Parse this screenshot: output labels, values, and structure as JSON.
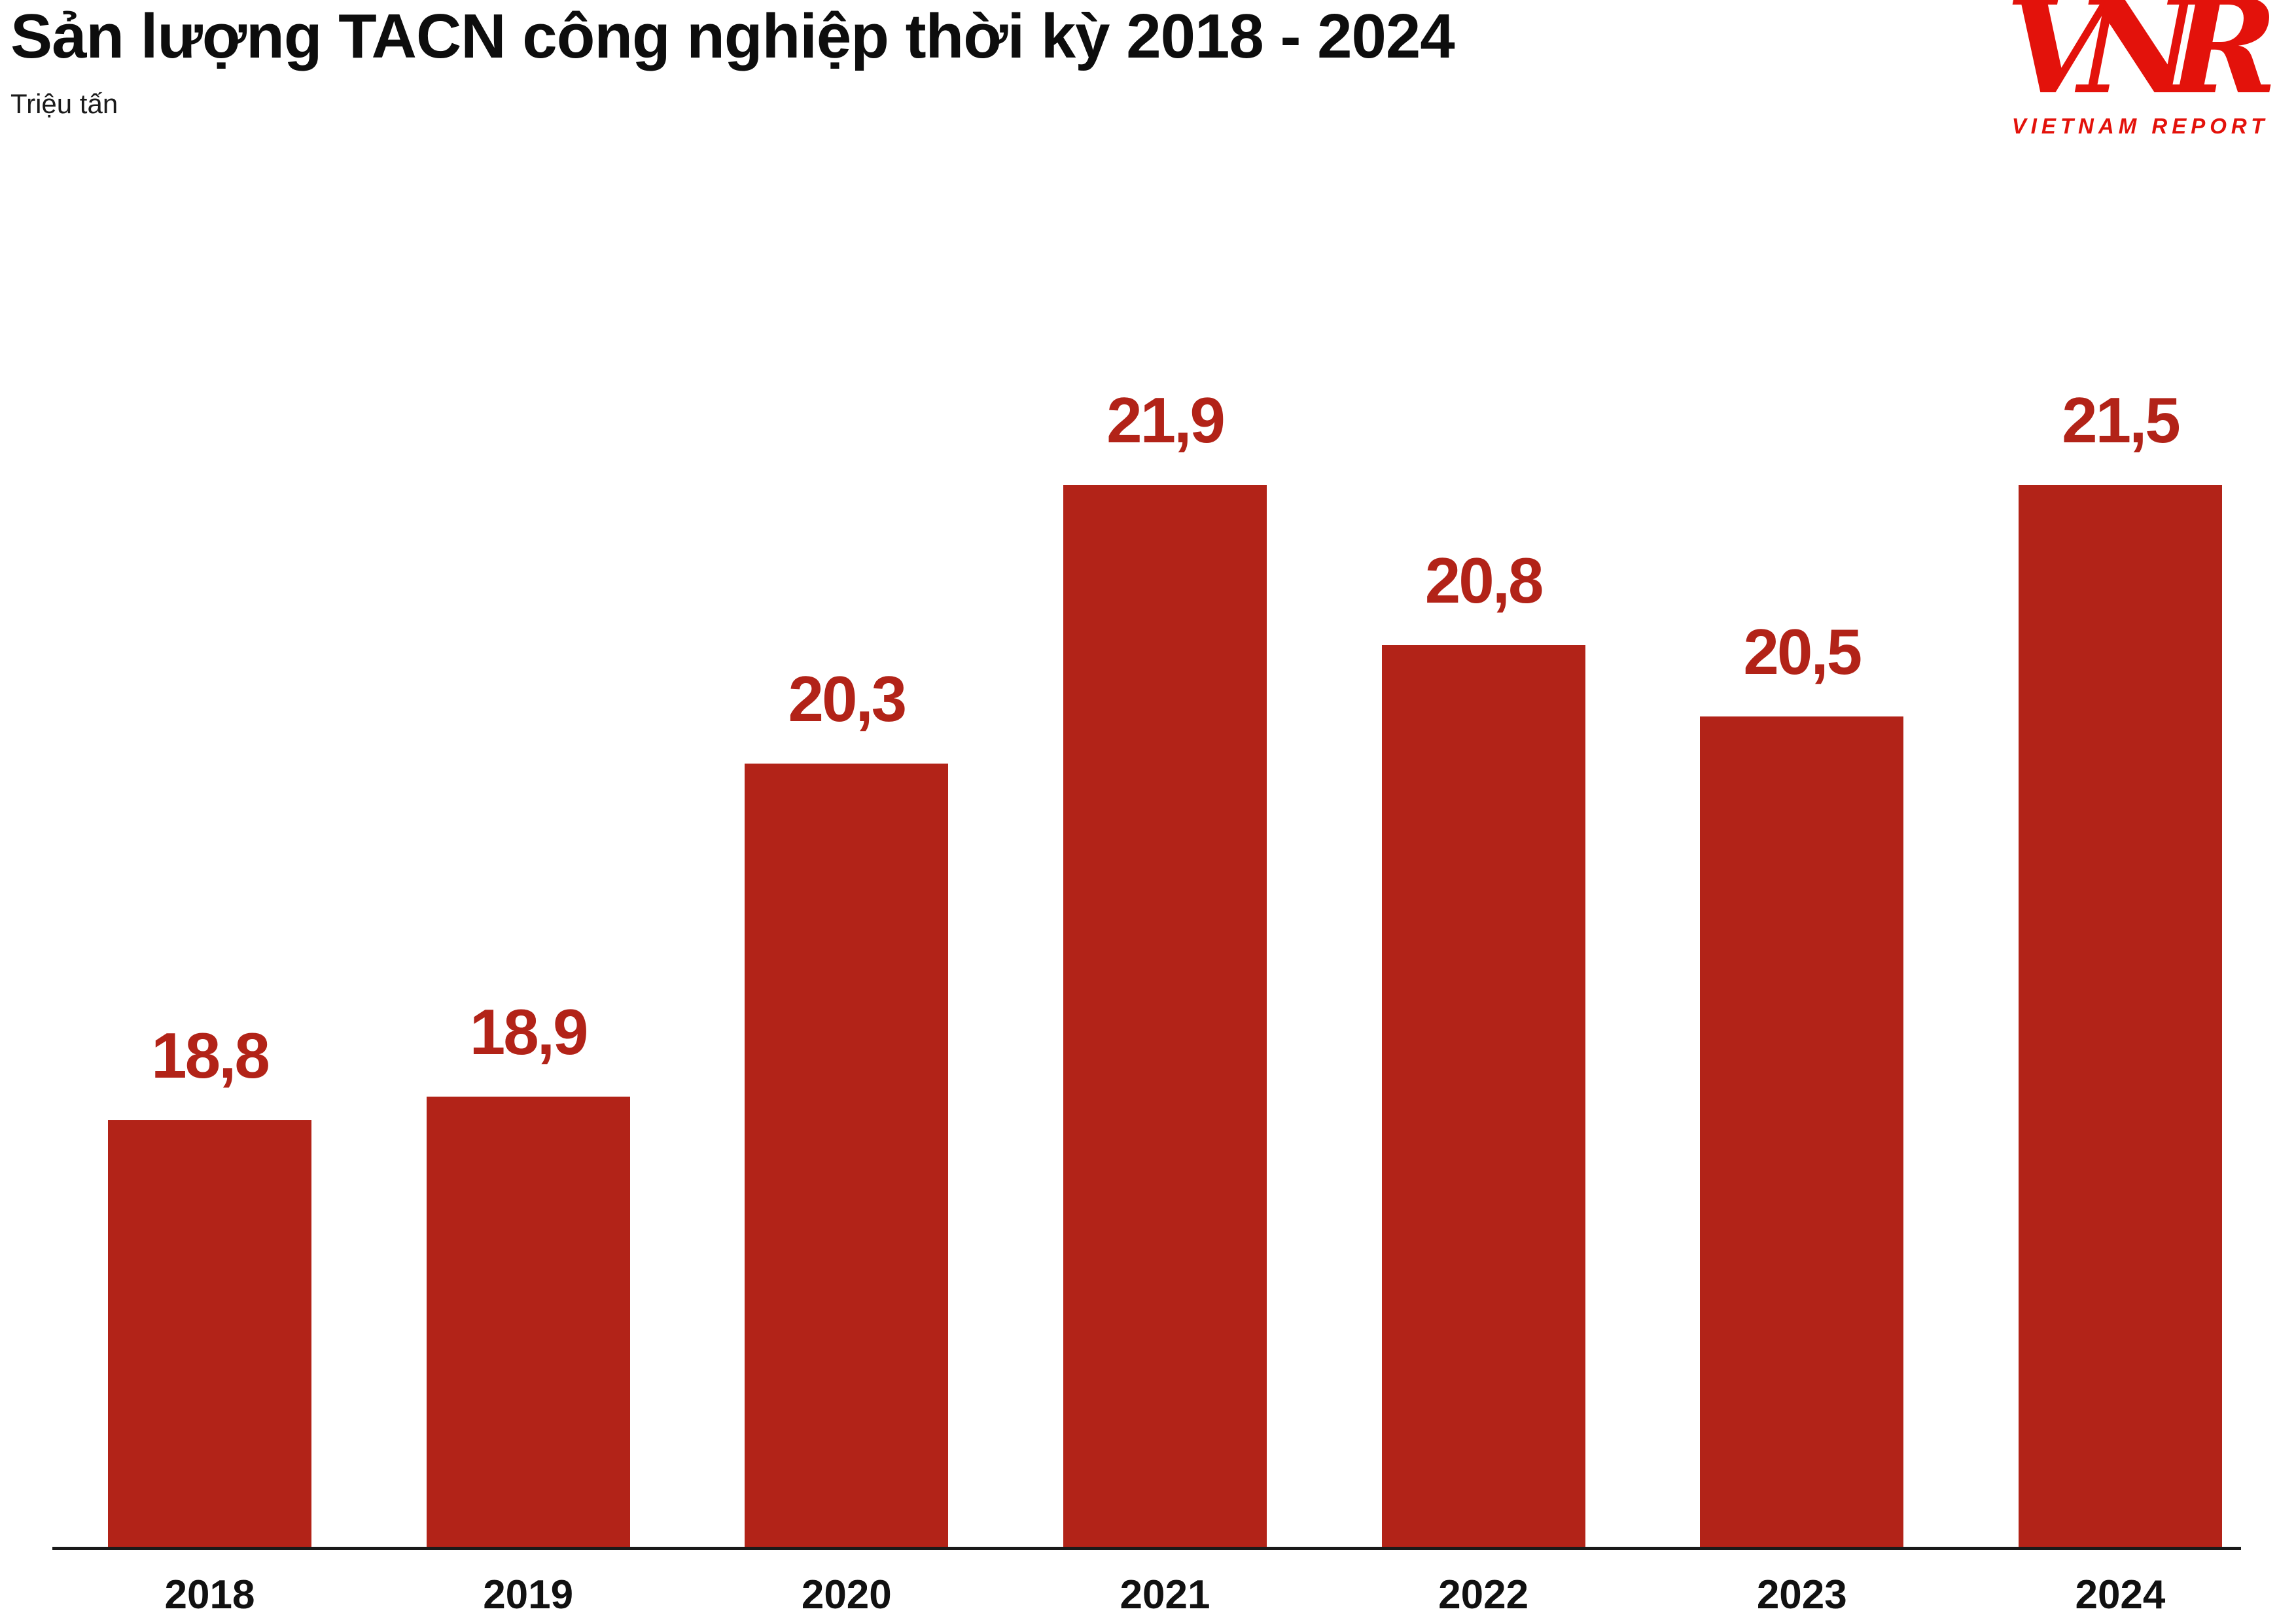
{
  "chart_data": {
    "type": "bar",
    "title": "Sản lượng TACN công nghiệp thời kỳ 2018 - 2024",
    "unit_label": "Triệu tấn",
    "categories": [
      "2018",
      "2019",
      "2020",
      "2021",
      "2022",
      "2023",
      "2024"
    ],
    "values": [
      18.8,
      18.9,
      20.3,
      21.9,
      20.8,
      20.5,
      21.5
    ],
    "value_labels": [
      "18,8",
      "18,9",
      "20,3",
      "21,9",
      "20,8",
      "20,5",
      "21,5"
    ],
    "ylim": [
      17.0,
      21.9
    ],
    "grid": false,
    "legend": "none",
    "colors": {
      "bar": "#b22318",
      "value_label": "#b22318",
      "axis": "#1a1a1a",
      "title": "#0d0d0d"
    }
  },
  "logo": {
    "monogram": "VNR",
    "caption": "VIETNAM REPORT",
    "color": "#e3120b"
  }
}
